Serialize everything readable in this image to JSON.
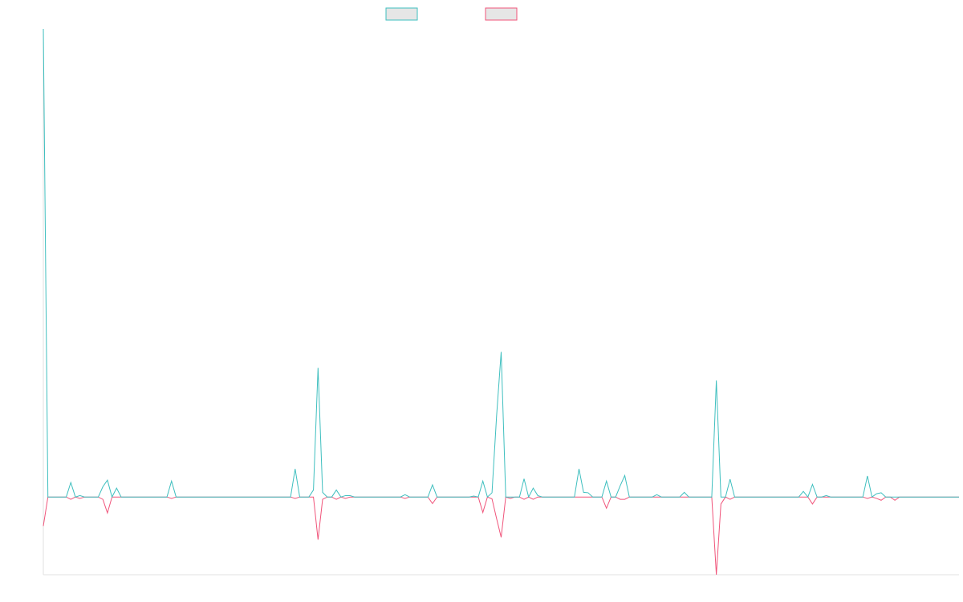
{
  "chart_data": {
    "type": "line",
    "x": [
      0,
      1,
      5,
      6,
      7,
      8,
      9,
      12,
      13,
      14,
      15,
      16,
      17,
      27,
      28,
      29,
      54,
      55,
      56,
      58,
      59,
      60,
      61,
      62,
      63,
      64,
      65,
      66,
      67,
      68,
      78,
      79,
      80,
      84,
      85,
      86,
      93,
      94,
      95,
      96,
      97,
      98,
      99,
      100,
      101,
      102,
      103,
      104,
      105,
      106,
      107,
      108,
      109,
      116,
      117,
      118,
      119,
      120,
      122,
      123,
      124,
      125,
      126,
      127,
      128,
      133,
      134,
      135,
      139,
      140,
      141,
      146,
      147,
      148,
      149,
      150,
      151,
      165,
      166,
      167,
      168,
      169,
      170,
      171,
      172,
      179,
      180,
      181,
      182,
      183,
      184,
      185,
      186,
      187,
      200
    ],
    "series": [
      {
        "color": "#3fbfbf",
        "values": [
          100,
          0,
          0,
          3.1,
          0,
          0.3,
          0,
          0,
          2.2,
          3.6,
          0,
          1.9,
          0,
          0,
          3.4,
          0,
          0,
          6,
          0,
          0,
          1.5,
          27.6,
          1,
          0,
          0,
          1.5,
          0,
          0.3,
          0.3,
          0,
          0,
          0.5,
          0,
          0,
          2.6,
          0,
          0,
          0.2,
          0,
          3.4,
          0,
          0.9,
          17.3,
          31,
          0,
          0,
          0,
          0,
          3.9,
          0,
          1.9,
          0.3,
          0,
          0,
          6,
          1,
          0.9,
          0,
          0,
          3.4,
          0,
          0,
          2.4,
          4.6,
          0,
          0,
          0.5,
          0,
          0,
          1,
          0,
          0,
          24.9,
          0,
          0,
          3.8,
          0,
          0,
          1.2,
          0,
          2.7,
          0,
          0,
          0.3,
          0,
          0,
          4.5,
          0,
          0.7,
          0.9,
          0,
          0,
          0,
          0,
          0
        ]
      },
      {
        "color": "#f0547a",
        "values": [
          -6.2,
          0,
          0,
          -0.5,
          0,
          -0.3,
          0,
          0,
          -0.5,
          -3.4,
          0,
          0,
          0,
          0,
          -0.3,
          0,
          0,
          -0.3,
          0,
          0,
          0,
          -9.1,
          -0.5,
          0,
          0,
          -0.5,
          0,
          -0.3,
          0,
          0,
          0,
          -0.3,
          0,
          0,
          -1.4,
          0,
          0,
          0,
          0,
          -3.3,
          0,
          -0.4,
          -4.6,
          -8.6,
          0,
          -0.3,
          0,
          0,
          -0.5,
          0,
          -0.5,
          0,
          0,
          0,
          0,
          0,
          0,
          0,
          0,
          -2.4,
          0,
          0,
          -0.5,
          -0.5,
          0,
          0,
          0,
          0,
          0,
          0,
          0,
          0,
          -16.6,
          -1.5,
          0,
          -0.5,
          0,
          0,
          0,
          0,
          -1.5,
          0,
          0,
          0,
          0,
          0,
          -0.3,
          0,
          -0.3,
          -0.7,
          0,
          0,
          -0.7,
          0,
          0
        ]
      }
    ],
    "xlim": [
      0,
      200
    ],
    "ylim": [
      -16.6,
      100
    ]
  }
}
